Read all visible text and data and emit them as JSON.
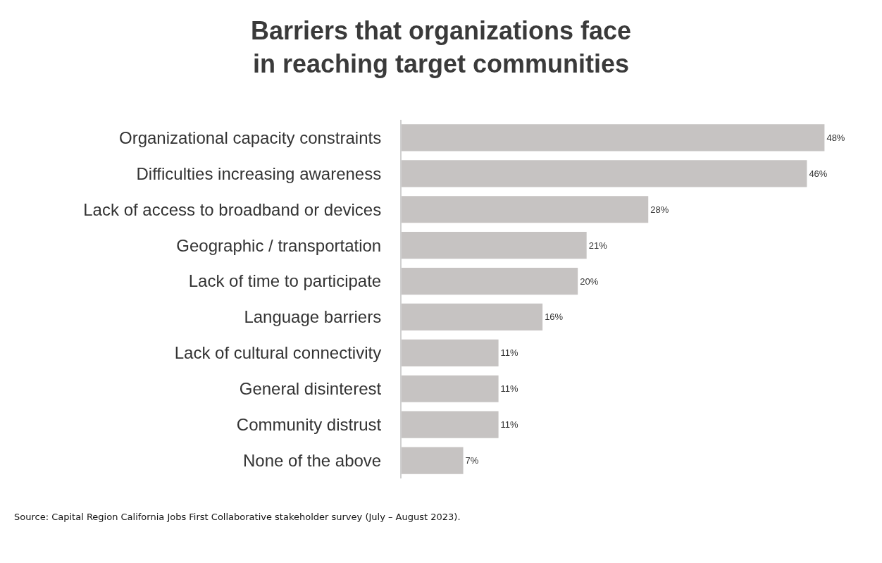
{
  "chart_data": {
    "type": "bar",
    "orientation": "horizontal",
    "title": "Barriers that organizations face in reaching target communities",
    "categories": [
      "Organizational capacity constraints",
      "Difficulties increasing awareness",
      "Lack of access to broadband or devices",
      "Geographic / transportation",
      "Lack of time to participate",
      "Language barriers",
      "Lack of cultural connectivity",
      "General disinterest",
      "Community distrust",
      "None of the above"
    ],
    "values": [
      48,
      46,
      28,
      21,
      20,
      16,
      11,
      11,
      11,
      7
    ],
    "value_labels": [
      "48%",
      "46%",
      "28%",
      "21%",
      "20%",
      "16%",
      "11%",
      "11%",
      "11%",
      "7%"
    ],
    "color": "#c6c3c2",
    "grid": false,
    "annotations": [
      "Source: Capital Region California Jobs First Collaborative stakeholder survey (July – August 2023)."
    ]
  }
}
